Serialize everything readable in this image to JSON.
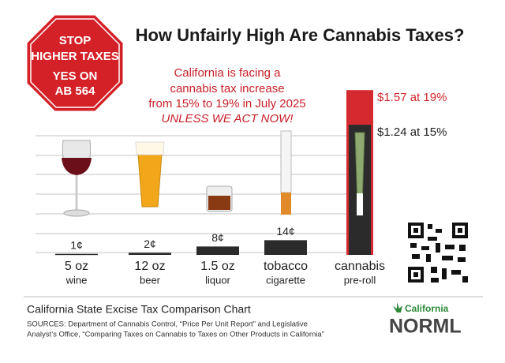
{
  "stop_sign": {
    "lines": [
      "STOP",
      "HIGHER TAXES",
      "YES ON",
      "AB 564"
    ]
  },
  "chart_data": {
    "type": "bar",
    "title": "How Unfairly High Are Cannabis Taxes?",
    "annotation": [
      "California is facing a",
      "cannabis tax increase",
      "from 15% to 19% in July 2025",
      "UNLESS WE ACT NOW!"
    ],
    "categories": [
      "5 oz",
      "12 oz",
      "1.5 oz",
      "tobacco",
      "cannabis"
    ],
    "subcategories": [
      "wine",
      "beer",
      "liquor",
      "cigarette",
      "pre-roll"
    ],
    "series": [
      {
        "color": "#d42a2f",
        "values": [
          null,
          null,
          null,
          null,
          157
        ],
        "value_labels": [
          null,
          null,
          null,
          null,
          "$1.57 at 19%"
        ]
      },
      {
        "color": "#2b2b2b",
        "values": [
          1,
          2,
          8,
          14,
          124
        ],
        "value_labels": [
          "1¢",
          "2¢",
          "8¢",
          "14¢",
          "$1.24 at 15%"
        ]
      }
    ]
  },
  "footer": {
    "caption": "California State Excise Tax Comparison Chart",
    "sources": [
      "SOURCES: Department of Cannabis Control, “Price Per Unit Report” and Legislative",
      "Analyst’s Office, “Comparing Taxes on Cannabis to Taxes on Other Products in California”"
    ]
  },
  "logo": {
    "top": "California",
    "main": "NORML"
  }
}
